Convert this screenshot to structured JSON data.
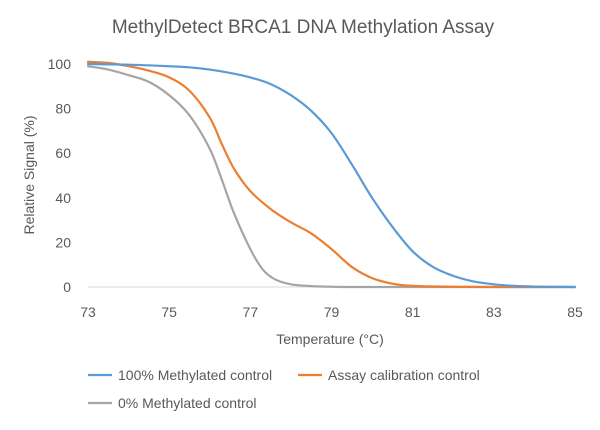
{
  "chart_data": {
    "type": "line",
    "title": "MethylDetect BRCA1 DNA Methylation Assay",
    "xlabel": "Temperature (°C)",
    "ylabel": "Relative Signal (%)",
    "xlim": [
      73,
      85
    ],
    "ylim": [
      0,
      100
    ],
    "x_ticks": [
      73,
      75,
      77,
      79,
      81,
      83,
      85
    ],
    "y_ticks": [
      0,
      20,
      40,
      60,
      80,
      100
    ],
    "grid": false,
    "legend_placement": "bottom",
    "series": [
      {
        "name": "100% Methylated control",
        "color": "#5B9BD5",
        "points": [
          [
            73.0,
            100
          ],
          [
            74.0,
            99.7
          ],
          [
            75.0,
            99
          ],
          [
            75.5,
            98.5
          ],
          [
            76.0,
            97.5
          ],
          [
            76.5,
            96
          ],
          [
            77.0,
            94
          ],
          [
            77.5,
            91
          ],
          [
            78.0,
            86
          ],
          [
            78.5,
            79
          ],
          [
            79.0,
            69
          ],
          [
            79.5,
            55
          ],
          [
            80.0,
            40
          ],
          [
            80.5,
            27
          ],
          [
            81.0,
            16
          ],
          [
            81.5,
            9
          ],
          [
            82.0,
            5
          ],
          [
            82.5,
            2.5
          ],
          [
            83.0,
            1.2
          ],
          [
            83.5,
            0.5
          ],
          [
            84.0,
            0.2
          ],
          [
            85.0,
            0
          ]
        ]
      },
      {
        "name": "Assay calibration control",
        "color": "#ED7D31",
        "points": [
          [
            73.0,
            101
          ],
          [
            73.5,
            100.5
          ],
          [
            74.0,
            99
          ],
          [
            74.5,
            97
          ],
          [
            75.0,
            94
          ],
          [
            75.5,
            88
          ],
          [
            76.0,
            76
          ],
          [
            76.3,
            64
          ],
          [
            76.6,
            53
          ],
          [
            77.0,
            43
          ],
          [
            77.5,
            35
          ],
          [
            78.0,
            29
          ],
          [
            78.5,
            24
          ],
          [
            79.0,
            17
          ],
          [
            79.5,
            9
          ],
          [
            80.0,
            4
          ],
          [
            80.5,
            1.5
          ],
          [
            81.0,
            0.5
          ],
          [
            82.0,
            0.1
          ],
          [
            83.0,
            0
          ],
          [
            85.0,
            0
          ]
        ]
      },
      {
        "name": "0% Methylated control",
        "color": "#A5A5A5",
        "points": [
          [
            73.0,
            99
          ],
          [
            73.5,
            97.5
          ],
          [
            74.0,
            95
          ],
          [
            74.5,
            92
          ],
          [
            75.0,
            86
          ],
          [
            75.5,
            77
          ],
          [
            76.0,
            62
          ],
          [
            76.3,
            48
          ],
          [
            76.6,
            33
          ],
          [
            77.0,
            17
          ],
          [
            77.3,
            8
          ],
          [
            77.6,
            3.5
          ],
          [
            78.0,
            1.2
          ],
          [
            78.5,
            0.4
          ],
          [
            79.0,
            0.1
          ],
          [
            80.0,
            0
          ],
          [
            85.0,
            0
          ]
        ]
      }
    ]
  }
}
